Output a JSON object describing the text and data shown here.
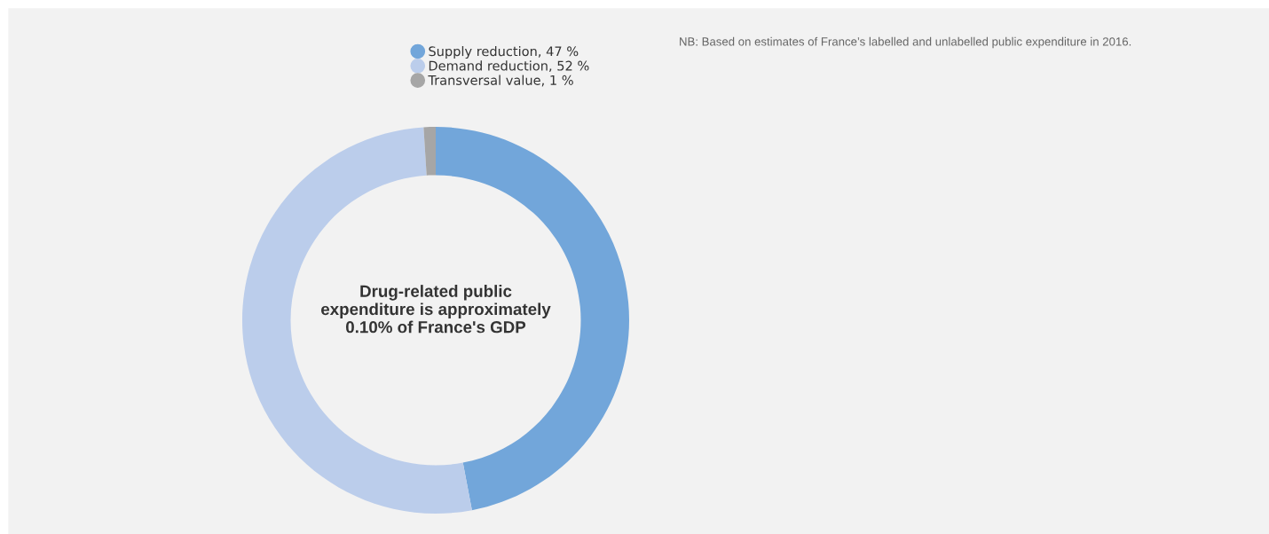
{
  "chart_data": {
    "type": "donut",
    "categories": [
      "Supply reduction, 47 %",
      "Demand reduction, 52 %",
      "Transversal value, 1 %"
    ],
    "values": [
      47,
      52,
      1
    ],
    "colors": [
      "#72a6da",
      "#bbcdeb",
      "#a6a6a6"
    ],
    "legend": "top",
    "annotations": [
      "Drug-related public expenditure is approximately 0.10% of France's GDP",
      "NB: Based on estimates of France’s labelled and unlabelled public expenditure in 2016."
    ]
  }
}
